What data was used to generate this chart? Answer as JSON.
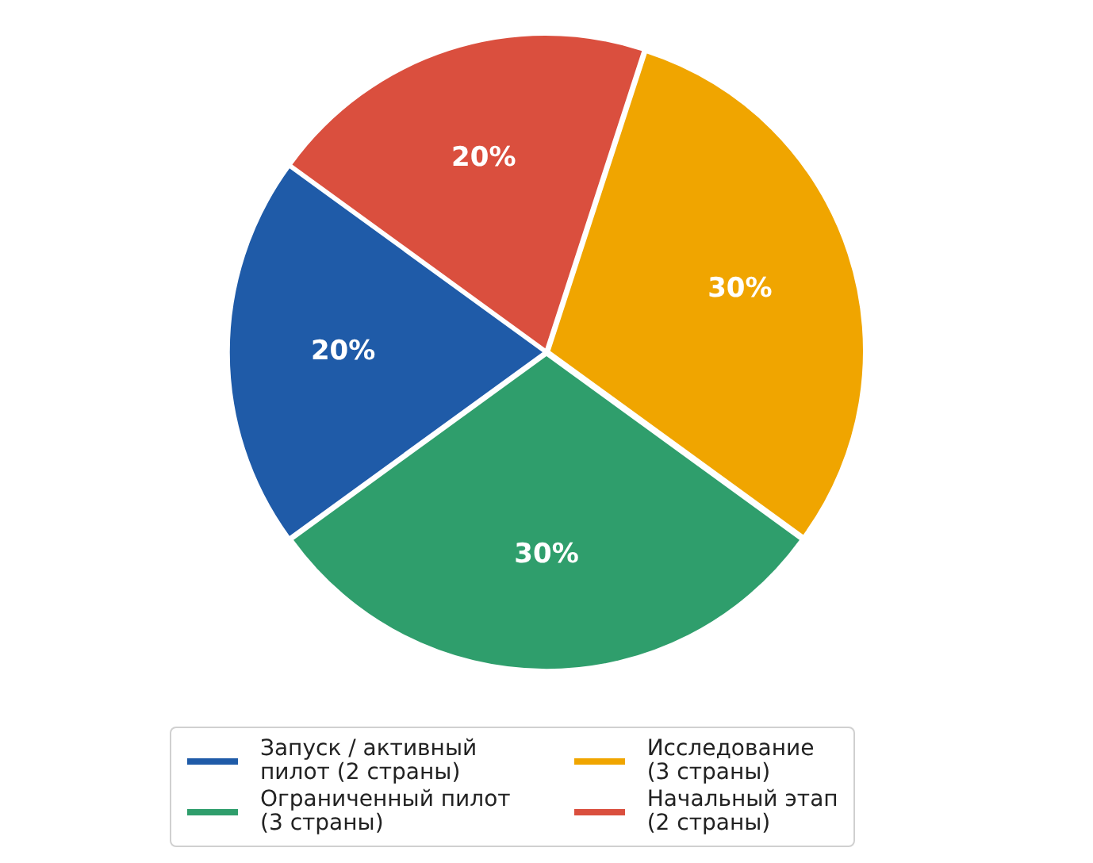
{
  "chart_data": {
    "type": "pie",
    "categories": [
      "Запуск / активный\nпилот (2 страны)",
      "Ограниченный пилот\n(3 страны)",
      "Исследование\n(3 страны)",
      "Начальный этап\n(2 страны)"
    ],
    "values": [
      20,
      30,
      30,
      20
    ],
    "colors": [
      "#1f5ba8",
      "#2f9e6c",
      "#f0a500",
      "#da4f3e"
    ],
    "value_labels": [
      "20%",
      "30%",
      "30%",
      "20%"
    ],
    "legend": "bottom"
  }
}
